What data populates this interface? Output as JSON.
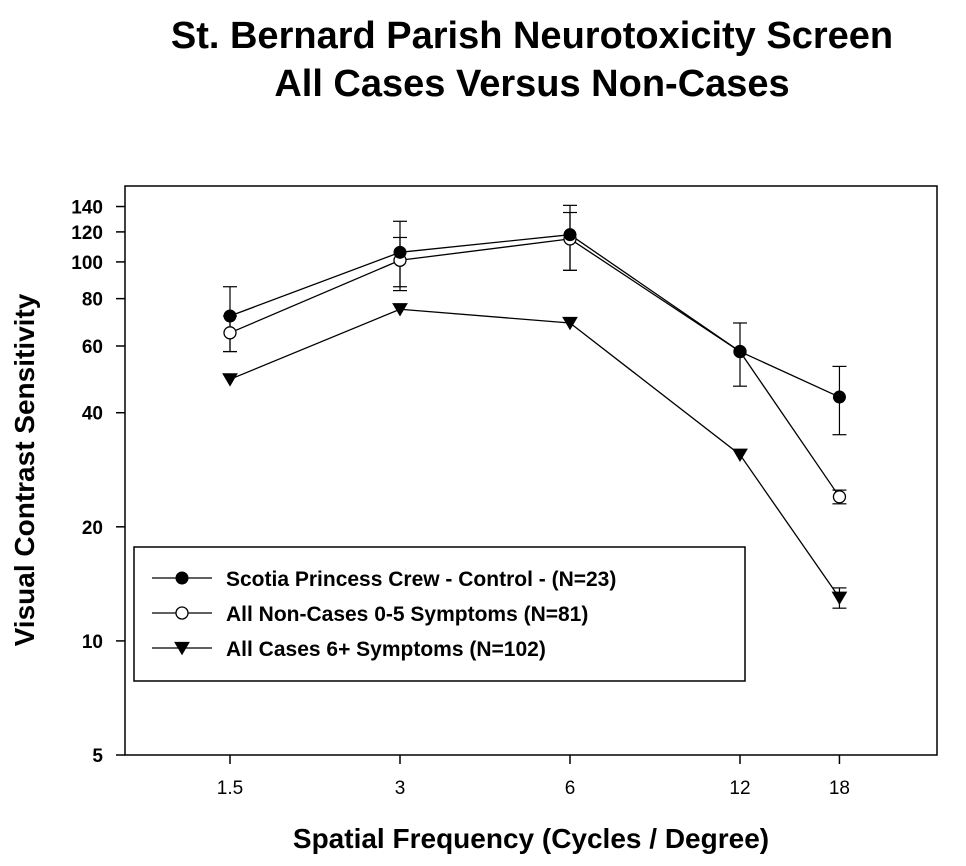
{
  "chart_data": {
    "type": "line",
    "title": "St. Bernard Parish Neurotoxicity Screen",
    "subtitle": "All Cases Versus Non-Cases",
    "xlabel": "Spatial Frequency  (Cycles / Degree)",
    "ylabel": "Visual Contrast Sensitivity",
    "x_scale": "log",
    "y_scale": "log",
    "categories": [
      "1.5",
      "3",
      "6",
      "12",
      "18"
    ],
    "x": [
      1.5,
      3,
      6,
      12,
      18
    ],
    "ylim": [
      5,
      160
    ],
    "xlim": [
      0.9,
      30
    ],
    "yticks": [
      5,
      10,
      20,
      40,
      60,
      80,
      100,
      120,
      140
    ],
    "grid": false,
    "legend_position": "lower-left",
    "series": [
      {
        "name": "Scotia Princess Crew - Control - (N=23)",
        "marker": "filled-circle",
        "values": [
          72,
          106,
          118,
          58,
          44
        ],
        "error": [
          14,
          22,
          23,
          11,
          9
        ]
      },
      {
        "name": "All Non-Cases 0-5 Symptoms (N=81)",
        "marker": "open-circle",
        "values": [
          65,
          101,
          115,
          58,
          24
        ],
        "error": [
          7,
          15,
          20,
          0,
          1
        ]
      },
      {
        "name": "All Cases 6+ Symptoms (N=102)",
        "marker": "filled-triangle-down",
        "values": [
          49,
          75,
          69,
          31,
          13
        ],
        "error": [
          0,
          0,
          0,
          0,
          0.8
        ]
      }
    ]
  }
}
